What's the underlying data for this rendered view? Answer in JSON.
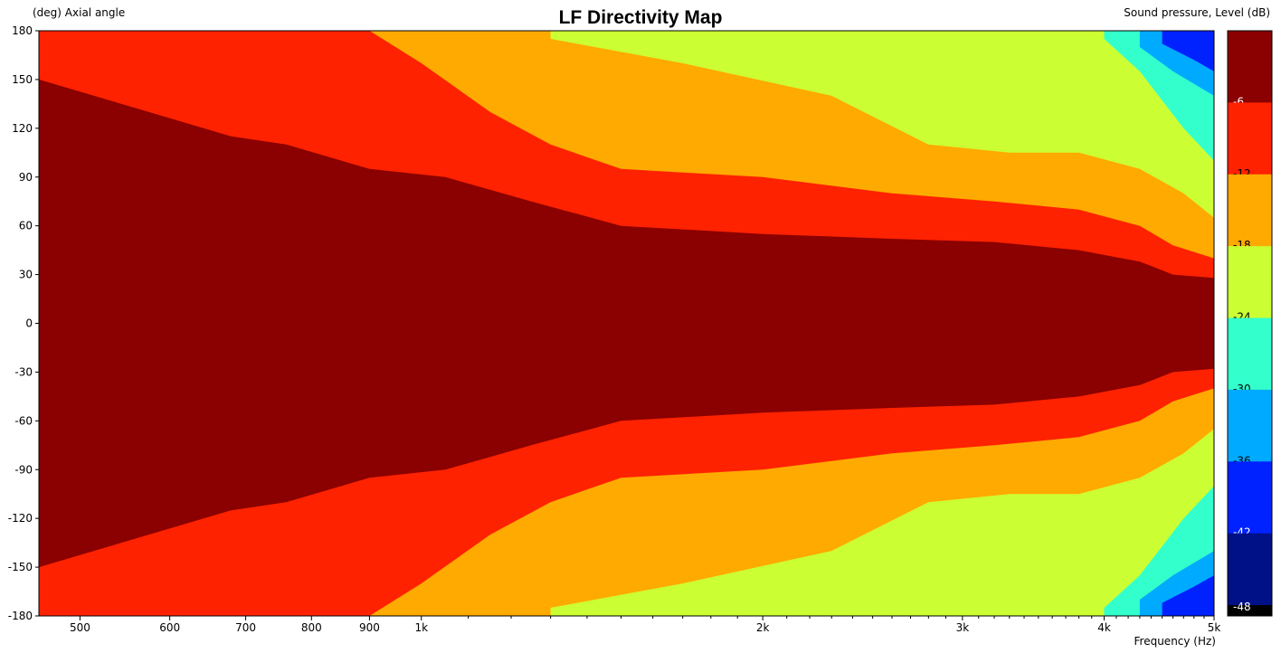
{
  "chart_data": {
    "type": "heatmap",
    "title": "LF Directivity Map",
    "ylabel": "(deg)  Axial angle",
    "xlabel": "Frequency  (Hz)",
    "zlabel": "Sound pressure, Level  (dB)",
    "x_scale": "log",
    "xlim": [
      460,
      5000
    ],
    "ylim": [
      -180,
      180
    ],
    "x_ticks": [
      {
        "value": 500,
        "label": "500"
      },
      {
        "value": 600,
        "label": "600"
      },
      {
        "value": 700,
        "label": "700"
      },
      {
        "value": 800,
        "label": "800"
      },
      {
        "value": 900,
        "label": "900"
      },
      {
        "value": 1000,
        "label": "1k"
      },
      {
        "value": 2000,
        "label": "2k"
      },
      {
        "value": 3000,
        "label": "3k"
      },
      {
        "value": 4000,
        "label": "4k"
      },
      {
        "value": 5000,
        "label": "5k"
      }
    ],
    "x_minor_ticks": [
      1100,
      1200,
      1300,
      1400,
      1500,
      1600,
      1700,
      1800,
      1900,
      2100,
      2200,
      2300,
      2400,
      2500,
      2600,
      2700,
      2800,
      2900,
      3100,
      3200,
      3300,
      3400,
      3500,
      3600,
      3700,
      3800,
      3900,
      4100,
      4200,
      4300,
      4400,
      4500,
      4600,
      4700,
      4800,
      4900
    ],
    "y_ticks": [
      180,
      150,
      120,
      90,
      60,
      30,
      0,
      -30,
      -60,
      -90,
      -120,
      -150,
      -180
    ],
    "colorbar": [
      {
        "label": "-6",
        "color": "#8b0000"
      },
      {
        "label": "-12",
        "color": "#ff2200"
      },
      {
        "label": "-18",
        "color": "#ffaa00"
      },
      {
        "label": "-24",
        "color": "#ccff33"
      },
      {
        "label": "-30",
        "color": "#33ffcc"
      },
      {
        "label": "-36",
        "color": "#00aaff"
      },
      {
        "label": "-42",
        "color": "#0022ff"
      },
      {
        "label": "-48",
        "color": "#001188"
      }
    ],
    "colorbar_bottom_color": "#000000",
    "contours": [
      {
        "band": "-12",
        "color": "#ff2200",
        "x": [
          460,
          680,
          760,
          900,
          1050,
          1250,
          1500,
          2000,
          2600,
          3200,
          3800,
          4300,
          4600,
          5000
        ],
        "angle": [
          150,
          115,
          110,
          95,
          90,
          75,
          60,
          55,
          52,
          50,
          45,
          38,
          30,
          28
        ]
      },
      {
        "band": "-18",
        "color": "#ffaa00",
        "x": [
          460,
          900,
          1000,
          1150,
          1300,
          1500,
          2000,
          2600,
          3200,
          3800,
          4300,
          4600,
          5000
        ],
        "angle": [
          180,
          180,
          160,
          130,
          110,
          95,
          90,
          80,
          75,
          70,
          60,
          48,
          40
        ]
      },
      {
        "band": "-24",
        "color": "#ccff33",
        "x": [
          1300,
          1700,
          2300,
          2800,
          3300,
          3800,
          4300,
          4700,
          5000
        ],
        "angle": [
          175,
          160,
          140,
          110,
          105,
          105,
          95,
          80,
          65
        ]
      },
      {
        "band": "-30",
        "color": "#33ffcc",
        "x": [
          4000,
          4300,
          4700,
          5000
        ],
        "angle": [
          175,
          155,
          120,
          100
        ]
      },
      {
        "band": "-36",
        "color": "#00aaff",
        "x": [
          4300,
          4600,
          5000
        ],
        "angle": [
          170,
          155,
          140
        ]
      },
      {
        "band": "-42",
        "color": "#0022ff",
        "x": [
          4500,
          4800,
          5000
        ],
        "angle": [
          172,
          162,
          155
        ]
      }
    ]
  }
}
